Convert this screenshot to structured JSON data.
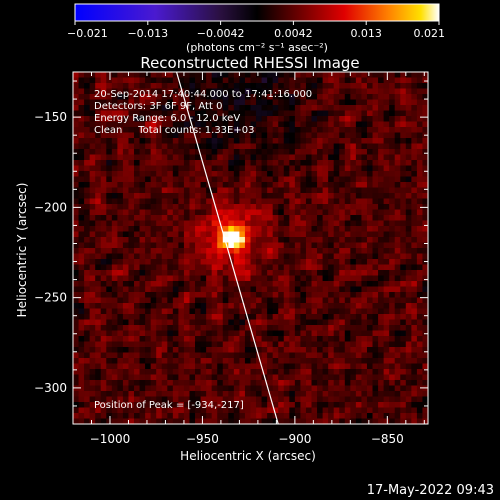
{
  "colorbar": {
    "ticks": [
      "−0.021",
      "−0.013",
      "−0.0042",
      "0.0042",
      "0.013",
      "0.021"
    ],
    "unit_label": "(photons cm⁻² s⁻¹ asec⁻²)"
  },
  "chart_data": {
    "type": "heatmap",
    "title": "Reconstructed RHESSI Image",
    "xlabel": "Heliocentric X (arcsec)",
    "ylabel": "Heliocentric Y (arcsec)",
    "xlim": [
      -1020,
      -828
    ],
    "ylim": [
      -320,
      -125
    ],
    "xticks": [
      -1000,
      -950,
      -900,
      -850
    ],
    "xtick_labels": [
      "−1000",
      "−950",
      "−900",
      "−850"
    ],
    "yticks": [
      -150,
      -200,
      -250,
      -300
    ],
    "ytick_labels": [
      "−150",
      "−200",
      "−250",
      "−300"
    ],
    "color_range": [
      -0.021,
      0.021
    ],
    "colormap": "blue-purple-black-red-yellow-white",
    "peak": {
      "x": -934,
      "y": -217
    },
    "limb_line": [
      [
        -964,
        -125
      ],
      [
        -909,
        -320
      ]
    ],
    "annotations": {
      "time": "20-Sep-2014 17:40:44.000 to 17:41:16.000",
      "detectors": "Detectors: 3F 6F 9F, Att 0",
      "energy": "Energy Range: 6.0 - 12.0 keV",
      "method": "Clean     Total counts: 1.33E+03",
      "peak_text": "Position of Peak = [-934,-217]"
    }
  },
  "footer": {
    "timestamp": "17-May-2022 09:43"
  }
}
